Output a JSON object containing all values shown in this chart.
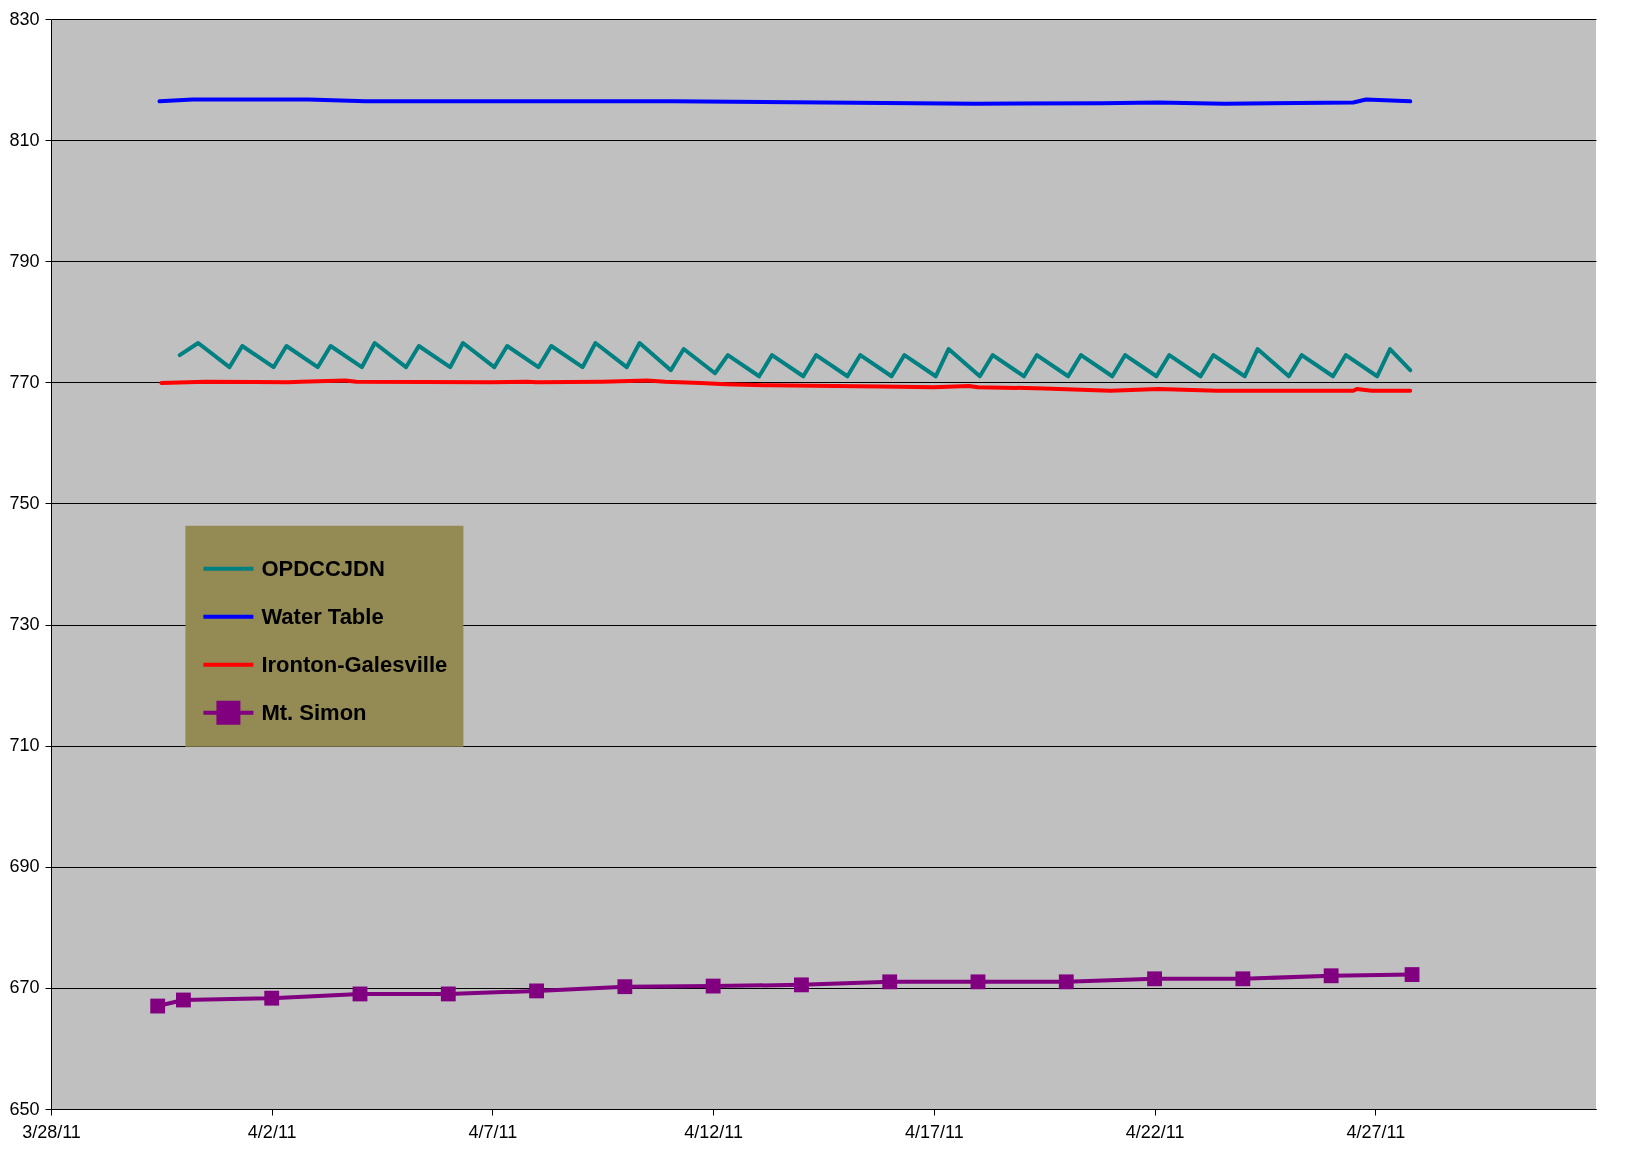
{
  "chart_data": {
    "type": "line",
    "xlim": [
      "--03-28",
      "--05-02"
    ],
    "xticks": [
      {
        "value": "--03-28",
        "label": "3/28/11"
      },
      {
        "value": "--04-02",
        "label": "4/2/11"
      },
      {
        "value": "--04-07",
        "label": "4/7/11"
      },
      {
        "value": "--04-12",
        "label": "4/12/11"
      },
      {
        "value": "--04-17",
        "label": "4/17/11"
      },
      {
        "value": "--04-22",
        "label": "4/22/11"
      },
      {
        "value": "--04-27",
        "label": "4/27/11"
      }
    ],
    "ylim": [
      650,
      830
    ],
    "yticks": [
      650,
      670,
      690,
      710,
      730,
      750,
      770,
      790,
      810,
      830
    ],
    "grid": "y",
    "legend": "left",
    "marker": "none",
    "series": [
      {
        "name": "OPDCCJDN",
        "color": "#008080",
        "x": [
          "--03-30T22:00",
          "--03-31T08:00",
          "--04-01T01:00",
          "--04-01T08:00",
          "--04-02T01:00",
          "--04-02T08:00",
          "--04-03T01:00",
          "--04-03T08:00",
          "--04-04T01:00",
          "--04-04T08:00",
          "--04-05T01:00",
          "--04-05T08:00",
          "--04-06T01:00",
          "--04-06T08:00",
          "--04-07T01:00",
          "--04-07T08:00",
          "--04-08T01:00",
          "--04-08T08:00",
          "--04-09T01:00",
          "--04-09T08:00",
          "--04-10T01:00",
          "--04-10T08:00",
          "--04-11T01:00",
          "--04-11T08:00",
          "--04-12T01:00",
          "--04-12T08:00",
          "--04-13T01:00",
          "--04-13T08:00",
          "--04-14T01:00",
          "--04-14T08:00",
          "--04-15T01:00",
          "--04-15T08:00",
          "--04-16T01:00",
          "--04-16T08:00",
          "--04-17T01:00",
          "--04-17T08:00",
          "--04-18T01:00",
          "--04-18T08:00",
          "--04-19T01:00",
          "--04-19T08:00",
          "--04-20T01:00",
          "--04-20T08:00",
          "--04-21T01:00",
          "--04-21T08:00",
          "--04-22T01:00",
          "--04-22T08:00",
          "--04-23T01:00",
          "--04-23T08:00",
          "--04-24T01:00",
          "--04-24T08:00",
          "--04-25T01:00",
          "--04-25T08:00",
          "--04-26T01:00",
          "--04-26T08:00",
          "--04-27T01:00",
          "--04-27T08:00",
          "--04-27T19:00"
        ],
        "values": [
          774.5,
          776.5,
          772.5,
          776,
          772.5,
          776,
          772.5,
          776,
          772.5,
          776.5,
          772.5,
          776,
          772.5,
          776.5,
          772.5,
          776,
          772.5,
          776,
          772.5,
          776.5,
          772.5,
          776.5,
          772,
          775.5,
          771.5,
          774.5,
          771,
          774.5,
          771,
          774.5,
          771,
          774.5,
          771,
          774.5,
          771,
          775.5,
          771,
          774.5,
          771,
          774.5,
          771,
          774.5,
          771,
          774.5,
          771,
          774.5,
          771,
          774.5,
          771,
          775.5,
          771,
          774.5,
          771,
          774.5,
          771,
          775.5,
          772
        ]
      },
      {
        "name": "Water Table",
        "color": "#0000ff",
        "x": [
          "--03-30T11:00",
          "--03-31T05:00",
          "--04-02T02:00",
          "--04-02T20:00",
          "--04-04T03:00",
          "--04-11T02:00",
          "--04-17T23:00",
          "--04-20T19:00",
          "--04-22T02:00",
          "--04-23T14:00",
          "--04-26T12:00",
          "--04-26T19:00",
          "--04-27T19:00"
        ],
        "values": [
          816.4,
          816.7,
          816.7,
          816.7,
          816.4,
          816.4,
          816.0,
          816.1,
          816.2,
          816.0,
          816.2,
          816.7,
          816.4
        ]
      },
      {
        "name": "Ironton-Galesville",
        "color": "#ff0000",
        "x": [
          "--03-30T12:00",
          "--03-31T12:00",
          "--04-02T09:00",
          "--04-02T16:00",
          "--04-03T16:00",
          "--04-03T22:00",
          "--04-06T23:00",
          "--04-07T19:00",
          "--04-08T00:00",
          "--04-09T12:00",
          "--04-10T12:00",
          "--04-10T22:00",
          "--04-11T17:00",
          "--04-12T07:00",
          "--04-13T07:00",
          "--04-15T19:00",
          "--04-17T00:00",
          "--04-17T19:00",
          "--04-18T00:00",
          "--04-19T12:00",
          "--04-21T00:00",
          "--04-22T02:00",
          "--04-23T10:00",
          "--04-26T12:00",
          "--04-26T14:00",
          "--04-26T22:00",
          "--04-27T19:00"
        ],
        "values": [
          769.9,
          770.1,
          770.0,
          770.1,
          770.3,
          770.1,
          770.0,
          770.1,
          770.0,
          770.1,
          770.3,
          770.1,
          769.9,
          769.7,
          769.5,
          769.3,
          769.2,
          769.4,
          769.2,
          769.0,
          768.6,
          768.9,
          768.6,
          768.6,
          768.9,
          768.6,
          768.6
        ]
      },
      {
        "name": "Mt. Simon",
        "color": "#800080",
        "marker": "square",
        "x": [
          "--03-30T10:00",
          "--03-31T00:00",
          "--04-02T00:00",
          "--04-04T00:00",
          "--04-06T00:00",
          "--04-08T00:00",
          "--04-10T00:00",
          "--04-12T00:00",
          "--04-14T00:00",
          "--04-16T00:00",
          "--04-18T00:00",
          "--04-20T00:00",
          "--04-22T00:00",
          "--04-24T00:00",
          "--04-26T00:00",
          "--04-27T20:00"
        ],
        "values": [
          667.0,
          668.0,
          668.3,
          669.0,
          669.0,
          669.5,
          670.2,
          670.3,
          670.5,
          671.0,
          671.0,
          671.0,
          671.5,
          671.5,
          672.0,
          672.2
        ]
      }
    ]
  }
}
